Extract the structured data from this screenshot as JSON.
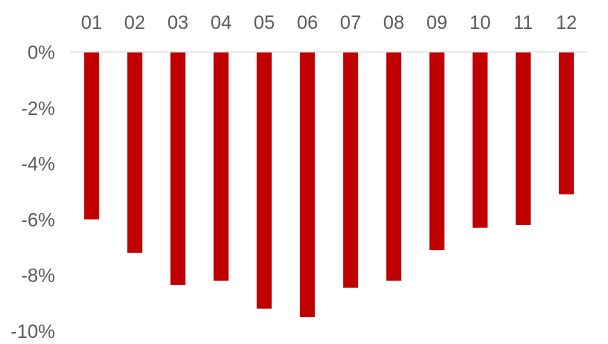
{
  "chart_data": {
    "type": "bar",
    "categories": [
      "01",
      "02",
      "03",
      "04",
      "05",
      "06",
      "07",
      "08",
      "09",
      "10",
      "11",
      "12"
    ],
    "values": [
      -6.0,
      -7.2,
      -8.35,
      -8.2,
      -9.2,
      -9.5,
      -8.45,
      -8.2,
      -7.1,
      -6.3,
      -6.2,
      -5.1
    ],
    "ylim": [
      -10,
      0
    ],
    "yticks": [
      0,
      -2,
      -4,
      -6,
      -8,
      -10
    ],
    "ytick_labels": [
      "0%",
      "-2%",
      "-4%",
      "-6%",
      "-8%",
      "-10%"
    ],
    "category_axis_position": "top",
    "bar_color": "#C00000",
    "grid": false,
    "legend": false,
    "title": "",
    "xlabel": "",
    "ylabel": ""
  }
}
